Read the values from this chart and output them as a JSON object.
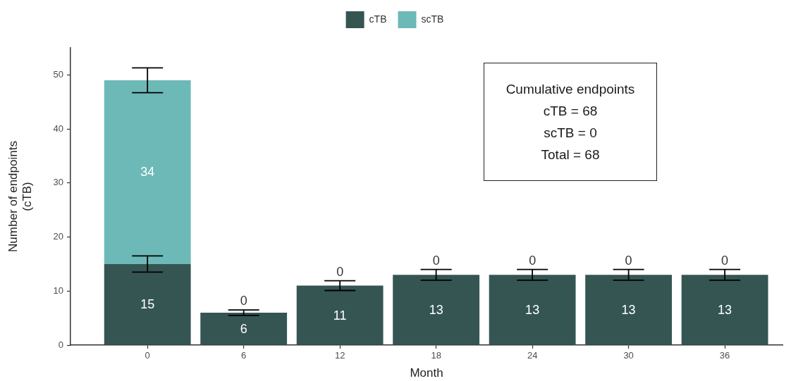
{
  "chart_data": {
    "type": "bar",
    "stacked": true,
    "categories": [
      "0",
      "6",
      "12",
      "18",
      "24",
      "30",
      "36"
    ],
    "series": [
      {
        "name": "cTB",
        "color": "#355553",
        "values": [
          15,
          6,
          11,
          13,
          13,
          13,
          13
        ],
        "errors": [
          1.5,
          0.5,
          0.9,
          1,
          1,
          1,
          1
        ]
      },
      {
        "name": "scTB",
        "color": "#6db9b7",
        "values": [
          34,
          0,
          0,
          0,
          0,
          0,
          0
        ],
        "errors": [
          2.3,
          null,
          null,
          null,
          null,
          null,
          null
        ]
      }
    ],
    "xlabel": "Month",
    "ylabel": "Number of endpoints\n(cTB)",
    "ylim": [
      0,
      55
    ],
    "yticks": [
      0,
      10,
      20,
      30,
      40,
      50
    ],
    "grid": false,
    "legend": "top",
    "data_labels": true,
    "annotations": [
      "Cumulative endpoints",
      "cTB = 68",
      "scTB = 0",
      "Total = 68"
    ]
  }
}
